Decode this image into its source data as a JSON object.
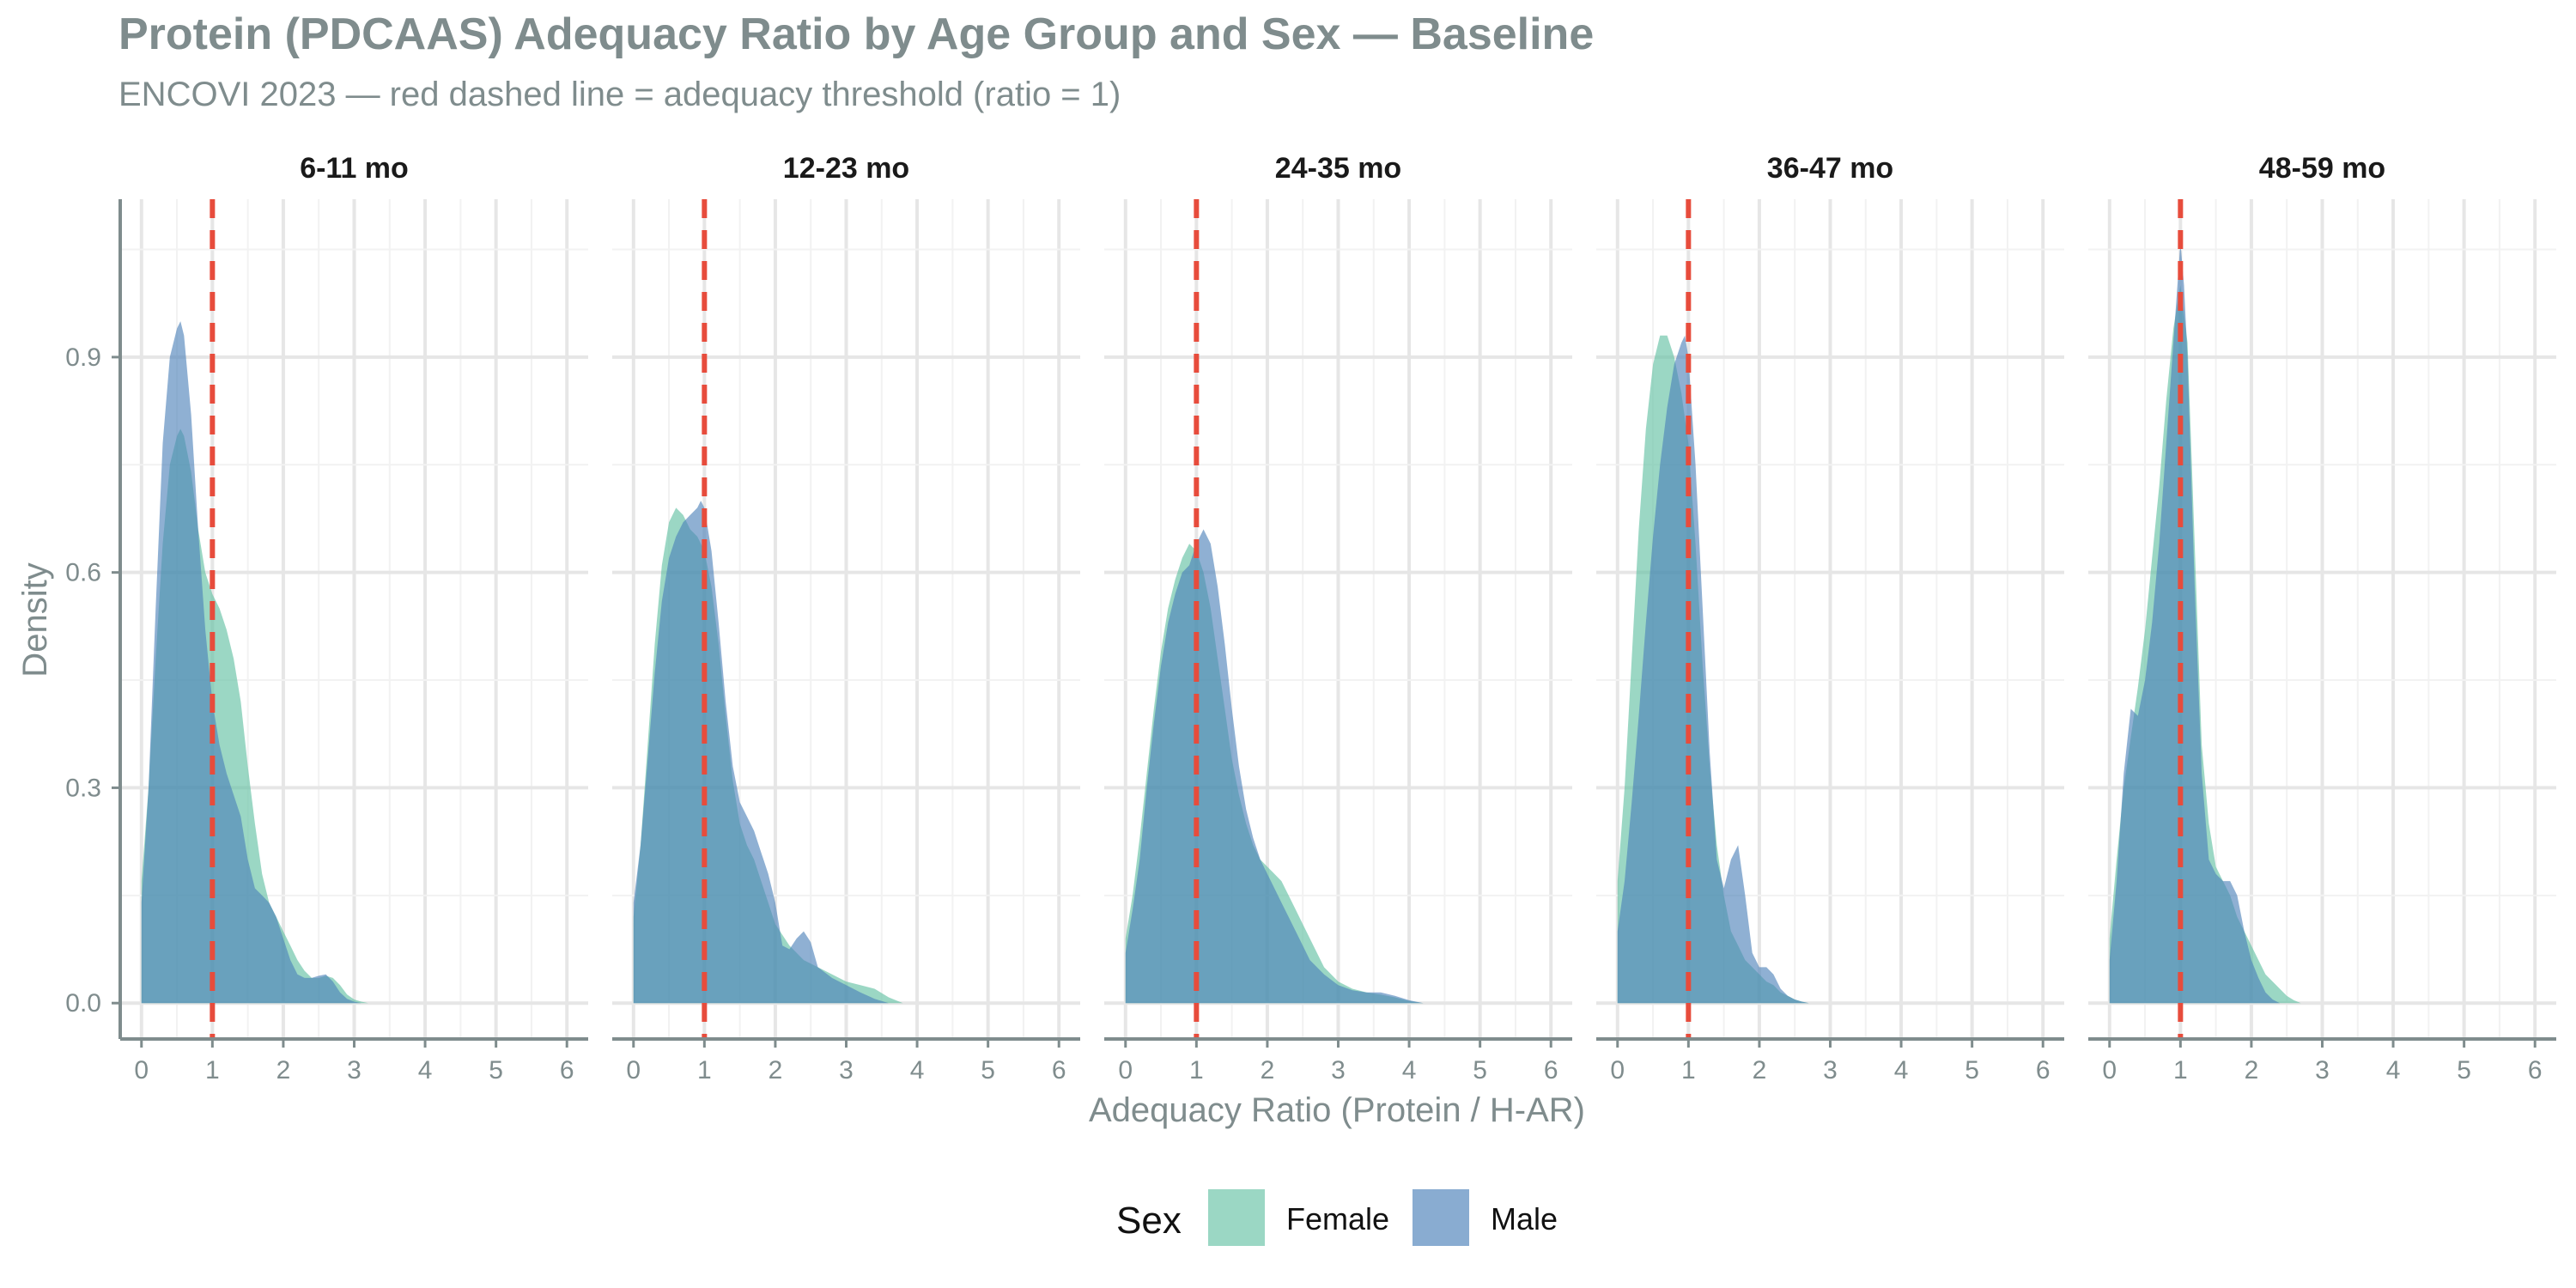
{
  "chart_data": {
    "type": "area",
    "title": "Protein (PDCAAS) Adequacy Ratio by Age Group and Sex — Baseline",
    "subtitle": "ENCOVI 2023 — red dashed line = adequacy threshold (ratio = 1)",
    "xlabel": "Adequacy Ratio (Protein / H-AR)",
    "ylabel": "Density",
    "xlim": [
      -0.3,
      6.3
    ],
    "ylim": [
      -0.05,
      1.12
    ],
    "x_ticks": [
      "0",
      "1",
      "2",
      "3",
      "4",
      "5",
      "6"
    ],
    "y_ticks": [
      "0.0",
      "0.3",
      "0.6",
      "0.9"
    ],
    "grid": true,
    "threshold": {
      "x": 1,
      "style": "dashed",
      "color": "#e74c3c"
    },
    "legend": {
      "title": "Sex",
      "position": "bottom",
      "entries": [
        {
          "label": "Female",
          "color": "#66c2a5"
        },
        {
          "label": "Male",
          "color": "#4a7fb8"
        }
      ]
    },
    "panels": [
      {
        "label": "6-11 mo",
        "series": [
          {
            "name": "Female",
            "x": [
              0,
              0.1,
              0.2,
              0.3,
              0.4,
              0.5,
              0.55,
              0.6,
              0.7,
              0.8,
              0.9,
              1.0,
              1.1,
              1.2,
              1.3,
              1.4,
              1.5,
              1.6,
              1.7,
              1.8,
              1.9,
              2.0,
              2.1,
              2.2,
              2.3,
              2.4,
              2.5,
              2.6,
              2.7,
              2.8,
              2.9,
              3.0,
              3.1,
              3.2
            ],
            "y": [
              0.17,
              0.3,
              0.48,
              0.64,
              0.75,
              0.79,
              0.8,
              0.79,
              0.74,
              0.66,
              0.6,
              0.57,
              0.55,
              0.52,
              0.48,
              0.42,
              0.33,
              0.25,
              0.18,
              0.14,
              0.12,
              0.1,
              0.08,
              0.06,
              0.045,
              0.035,
              0.035,
              0.038,
              0.035,
              0.025,
              0.012,
              0.005,
              0.002,
              0
            ]
          },
          {
            "name": "Male",
            "x": [
              0,
              0.1,
              0.2,
              0.3,
              0.4,
              0.5,
              0.55,
              0.6,
              0.7,
              0.8,
              0.9,
              1.0,
              1.1,
              1.2,
              1.3,
              1.4,
              1.5,
              1.6,
              1.7,
              1.8,
              1.9,
              2.0,
              2.1,
              2.2,
              2.3,
              2.4,
              2.5,
              2.6,
              2.7,
              2.8,
              2.9,
              3.0,
              3.1
            ],
            "y": [
              0.14,
              0.3,
              0.55,
              0.78,
              0.9,
              0.94,
              0.95,
              0.93,
              0.82,
              0.66,
              0.52,
              0.42,
              0.36,
              0.32,
              0.29,
              0.26,
              0.2,
              0.16,
              0.15,
              0.14,
              0.12,
              0.09,
              0.06,
              0.04,
              0.035,
              0.035,
              0.038,
              0.04,
              0.03,
              0.015,
              0.006,
              0.002,
              0
            ]
          }
        ]
      },
      {
        "label": "12-23 mo",
        "series": [
          {
            "name": "Female",
            "x": [
              0,
              0.1,
              0.2,
              0.3,
              0.4,
              0.5,
              0.6,
              0.7,
              0.8,
              0.9,
              1.0,
              1.1,
              1.2,
              1.3,
              1.4,
              1.5,
              1.6,
              1.7,
              1.8,
              1.9,
              2.0,
              2.2,
              2.4,
              2.6,
              2.8,
              3.0,
              3.2,
              3.4,
              3.6,
              3.8
            ],
            "y": [
              0.12,
              0.22,
              0.36,
              0.5,
              0.61,
              0.67,
              0.69,
              0.68,
              0.66,
              0.65,
              0.63,
              0.58,
              0.5,
              0.4,
              0.31,
              0.25,
              0.22,
              0.2,
              0.17,
              0.14,
              0.11,
              0.08,
              0.06,
              0.05,
              0.04,
              0.03,
              0.025,
              0.02,
              0.008,
              0
            ]
          },
          {
            "name": "Male",
            "x": [
              0,
              0.1,
              0.2,
              0.3,
              0.4,
              0.5,
              0.6,
              0.7,
              0.8,
              0.9,
              0.95,
              1.0,
              1.1,
              1.2,
              1.3,
              1.4,
              1.5,
              1.6,
              1.7,
              1.8,
              1.9,
              2.0,
              2.1,
              2.2,
              2.3,
              2.4,
              2.5,
              2.6,
              2.8,
              3.0,
              3.2,
              3.4,
              3.6
            ],
            "y": [
              0.14,
              0.22,
              0.34,
              0.46,
              0.56,
              0.62,
              0.65,
              0.67,
              0.68,
              0.69,
              0.7,
              0.69,
              0.63,
              0.53,
              0.42,
              0.33,
              0.28,
              0.26,
              0.24,
              0.21,
              0.18,
              0.14,
              0.08,
              0.075,
              0.09,
              0.1,
              0.085,
              0.05,
              0.035,
              0.025,
              0.015,
              0.006,
              0
            ]
          }
        ]
      },
      {
        "label": "24-35 mo",
        "series": [
          {
            "name": "Female",
            "x": [
              0,
              0.1,
              0.2,
              0.3,
              0.4,
              0.5,
              0.6,
              0.7,
              0.8,
              0.9,
              1.0,
              1.1,
              1.2,
              1.3,
              1.4,
              1.5,
              1.6,
              1.7,
              1.8,
              1.9,
              2.0,
              2.1,
              2.2,
              2.3,
              2.4,
              2.5,
              2.6,
              2.8,
              3.0,
              3.2,
              3.4,
              3.6,
              3.8,
              4.0,
              4.2
            ],
            "y": [
              0.09,
              0.15,
              0.23,
              0.32,
              0.41,
              0.49,
              0.55,
              0.59,
              0.62,
              0.64,
              0.63,
              0.6,
              0.55,
              0.48,
              0.41,
              0.34,
              0.29,
              0.25,
              0.22,
              0.2,
              0.19,
              0.18,
              0.17,
              0.15,
              0.13,
              0.11,
              0.09,
              0.05,
              0.03,
              0.02,
              0.015,
              0.012,
              0.008,
              0.003,
              0
            ]
          },
          {
            "name": "Male",
            "x": [
              0,
              0.1,
              0.2,
              0.3,
              0.4,
              0.5,
              0.6,
              0.7,
              0.8,
              0.9,
              1.0,
              1.1,
              1.2,
              1.3,
              1.4,
              1.5,
              1.6,
              1.7,
              1.8,
              1.9,
              2.0,
              2.1,
              2.2,
              2.3,
              2.4,
              2.5,
              2.6,
              2.8,
              3.0,
              3.2,
              3.4,
              3.6,
              3.8,
              4.0,
              4.2
            ],
            "y": [
              0.07,
              0.13,
              0.2,
              0.3,
              0.39,
              0.47,
              0.53,
              0.57,
              0.6,
              0.61,
              0.64,
              0.66,
              0.64,
              0.58,
              0.5,
              0.41,
              0.33,
              0.27,
              0.23,
              0.2,
              0.18,
              0.16,
              0.14,
              0.12,
              0.1,
              0.08,
              0.06,
              0.04,
              0.025,
              0.018,
              0.015,
              0.015,
              0.01,
              0.004,
              0
            ]
          }
        ]
      },
      {
        "label": "36-47 mo",
        "series": [
          {
            "name": "Female",
            "x": [
              0,
              0.1,
              0.2,
              0.3,
              0.4,
              0.5,
              0.6,
              0.7,
              0.8,
              0.9,
              1.0,
              1.1,
              1.2,
              1.3,
              1.4,
              1.5,
              1.6,
              1.7,
              1.8,
              1.9,
              2.0,
              2.1,
              2.2,
              2.3,
              2.4,
              2.5,
              2.6,
              2.7
            ],
            "y": [
              0.17,
              0.3,
              0.48,
              0.66,
              0.8,
              0.89,
              0.93,
              0.93,
              0.9,
              0.85,
              0.78,
              0.64,
              0.47,
              0.33,
              0.22,
              0.15,
              0.1,
              0.08,
              0.06,
              0.05,
              0.04,
              0.03,
              0.025,
              0.015,
              0.01,
              0.005,
              0.002,
              0
            ]
          },
          {
            "name": "Male",
            "x": [
              0,
              0.1,
              0.2,
              0.3,
              0.4,
              0.5,
              0.6,
              0.7,
              0.8,
              0.9,
              0.95,
              1.0,
              1.1,
              1.2,
              1.3,
              1.4,
              1.5,
              1.6,
              1.7,
              1.8,
              1.9,
              2.0,
              2.1,
              2.2,
              2.3,
              2.4,
              2.5,
              2.6,
              2.7
            ],
            "y": [
              0.1,
              0.17,
              0.28,
              0.4,
              0.53,
              0.65,
              0.75,
              0.83,
              0.89,
              0.92,
              0.93,
              0.9,
              0.75,
              0.55,
              0.35,
              0.2,
              0.16,
              0.2,
              0.22,
              0.15,
              0.07,
              0.05,
              0.05,
              0.04,
              0.02,
              0.01,
              0.005,
              0.002,
              0
            ]
          }
        ]
      },
      {
        "label": "48-59 mo",
        "series": [
          {
            "name": "Female",
            "x": [
              0,
              0.1,
              0.2,
              0.3,
              0.4,
              0.5,
              0.6,
              0.7,
              0.8,
              0.9,
              1.0,
              1.1,
              1.2,
              1.3,
              1.4,
              1.5,
              1.6,
              1.7,
              1.8,
              1.9,
              2.0,
              2.1,
              2.2,
              2.3,
              2.4,
              2.5,
              2.6,
              2.7
            ],
            "y": [
              0.09,
              0.2,
              0.3,
              0.37,
              0.44,
              0.52,
              0.62,
              0.72,
              0.84,
              0.94,
              1.0,
              0.92,
              0.64,
              0.36,
              0.25,
              0.19,
              0.17,
              0.15,
              0.12,
              0.1,
              0.08,
              0.06,
              0.04,
              0.03,
              0.02,
              0.01,
              0.004,
              0
            ]
          },
          {
            "name": "Male",
            "x": [
              0,
              0.1,
              0.2,
              0.3,
              0.4,
              0.5,
              0.6,
              0.7,
              0.8,
              0.9,
              0.95,
              1.0,
              1.05,
              1.1,
              1.2,
              1.3,
              1.4,
              1.5,
              1.6,
              1.7,
              1.8,
              1.9,
              2.0,
              2.1,
              2.2,
              2.3,
              2.4
            ],
            "y": [
              0.06,
              0.17,
              0.32,
              0.41,
              0.4,
              0.45,
              0.53,
              0.64,
              0.78,
              0.92,
              0.99,
              1.06,
              1.0,
              0.9,
              0.58,
              0.32,
              0.2,
              0.18,
              0.17,
              0.17,
              0.15,
              0.1,
              0.06,
              0.035,
              0.015,
              0.005,
              0
            ]
          }
        ]
      }
    ]
  }
}
